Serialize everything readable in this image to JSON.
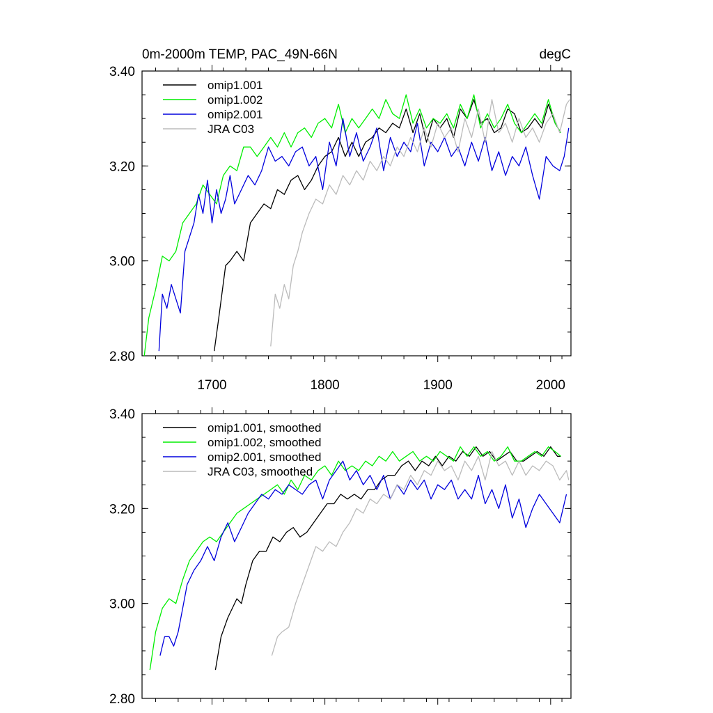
{
  "chart_data": [
    {
      "type": "line",
      "title": "0m-2000m TEMP, PAC_49N-66N",
      "units": "degC",
      "xlabel": "",
      "ylabel": "",
      "xlim": [
        1638,
        2018
      ],
      "ylim": [
        2.8,
        3.4
      ],
      "xticks": [
        1700,
        1800,
        1900,
        2000
      ],
      "xtick_labels": [
        "1700",
        "1800",
        "1900",
        "2000"
      ],
      "yticks": [
        2.8,
        3.0,
        3.2,
        3.4
      ],
      "ytick_labels": [
        "2.80",
        "3.00",
        "3.20",
        "3.40"
      ],
      "legend_position": "top-left",
      "series": [
        {
          "name": "omip1.001",
          "color": "#000000",
          "x": [
            1702,
            1706,
            1712,
            1716,
            1722,
            1728,
            1734,
            1740,
            1746,
            1752,
            1758,
            1764,
            1770,
            1776,
            1782,
            1788,
            1794,
            1800,
            1806,
            1812,
            1818,
            1824,
            1830,
            1836,
            1842,
            1848,
            1854,
            1860,
            1866,
            1872,
            1878,
            1884,
            1890,
            1896,
            1902,
            1908,
            1914,
            1920,
            1926,
            1932,
            1938,
            1944,
            1950,
            1956,
            1962,
            1968,
            1974,
            1980,
            1986,
            1992,
            1998,
            2004,
            2009
          ],
          "y": [
            2.81,
            2.88,
            2.99,
            3.0,
            3.02,
            3.0,
            3.08,
            3.1,
            3.12,
            3.11,
            3.15,
            3.14,
            3.17,
            3.18,
            3.15,
            3.17,
            3.2,
            3.22,
            3.23,
            3.26,
            3.22,
            3.25,
            3.22,
            3.25,
            3.26,
            3.28,
            3.27,
            3.29,
            3.28,
            3.32,
            3.27,
            3.31,
            3.25,
            3.3,
            3.28,
            3.3,
            3.26,
            3.32,
            3.3,
            3.34,
            3.29,
            3.3,
            3.27,
            3.28,
            3.32,
            3.31,
            3.27,
            3.28,
            3.3,
            3.28,
            3.33,
            3.29,
            3.27
          ]
        },
        {
          "name": "omip1.002",
          "color": "#00ee00",
          "x": [
            1640,
            1644,
            1650,
            1656,
            1662,
            1668,
            1674,
            1680,
            1686,
            1692,
            1698,
            1704,
            1710,
            1716,
            1722,
            1728,
            1734,
            1740,
            1746,
            1752,
            1758,
            1764,
            1770,
            1776,
            1782,
            1788,
            1794,
            1800,
            1806,
            1812,
            1818,
            1824,
            1830,
            1836,
            1842,
            1848,
            1854,
            1860,
            1866,
            1872,
            1878,
            1884,
            1890,
            1896,
            1902,
            1908,
            1914,
            1920,
            1926,
            1932,
            1938,
            1944,
            1950,
            1956,
            1962,
            1968,
            1974,
            1980,
            1986,
            1992,
            1998,
            2004,
            2009
          ],
          "y": [
            2.8,
            2.88,
            2.94,
            3.01,
            3.0,
            3.02,
            3.08,
            3.1,
            3.12,
            3.16,
            3.14,
            3.12,
            3.18,
            3.2,
            3.19,
            3.24,
            3.24,
            3.22,
            3.24,
            3.26,
            3.24,
            3.27,
            3.24,
            3.27,
            3.28,
            3.26,
            3.29,
            3.3,
            3.28,
            3.33,
            3.27,
            3.3,
            3.28,
            3.3,
            3.32,
            3.3,
            3.34,
            3.31,
            3.3,
            3.35,
            3.29,
            3.32,
            3.28,
            3.3,
            3.29,
            3.31,
            3.28,
            3.33,
            3.3,
            3.35,
            3.28,
            3.31,
            3.28,
            3.3,
            3.33,
            3.29,
            3.27,
            3.29,
            3.31,
            3.29,
            3.34,
            3.29,
            3.27
          ]
        },
        {
          "name": "omip2.001",
          "color": "#0000dd",
          "x": [
            1653,
            1656,
            1660,
            1664,
            1668,
            1672,
            1676,
            1680,
            1684,
            1688,
            1692,
            1696,
            1700,
            1704,
            1708,
            1712,
            1716,
            1720,
            1726,
            1732,
            1738,
            1744,
            1750,
            1756,
            1762,
            1768,
            1774,
            1780,
            1786,
            1792,
            1798,
            1804,
            1810,
            1816,
            1822,
            1828,
            1834,
            1840,
            1846,
            1852,
            1858,
            1864,
            1870,
            1876,
            1882,
            1888,
            1894,
            1900,
            1906,
            1912,
            1918,
            1924,
            1930,
            1936,
            1942,
            1948,
            1954,
            1960,
            1966,
            1972,
            1978,
            1984,
            1990,
            1996,
            2002,
            2008,
            2012,
            2016
          ],
          "y": [
            2.81,
            2.93,
            2.9,
            2.95,
            2.92,
            2.89,
            3.02,
            3.05,
            3.08,
            3.14,
            3.1,
            3.17,
            3.08,
            3.15,
            3.1,
            3.13,
            3.18,
            3.12,
            3.15,
            3.18,
            3.16,
            3.19,
            3.24,
            3.21,
            3.22,
            3.2,
            3.23,
            3.24,
            3.2,
            3.22,
            3.15,
            3.25,
            3.2,
            3.3,
            3.22,
            3.27,
            3.21,
            3.24,
            3.28,
            3.19,
            3.26,
            3.22,
            3.25,
            3.23,
            3.29,
            3.2,
            3.25,
            3.23,
            3.26,
            3.22,
            3.24,
            3.2,
            3.25,
            3.21,
            3.26,
            3.19,
            3.23,
            3.18,
            3.22,
            3.2,
            3.24,
            3.18,
            3.13,
            3.22,
            3.2,
            3.19,
            3.22,
            3.28
          ]
        },
        {
          "name": "JRA C03",
          "color": "#bbbbbb",
          "x": [
            1752,
            1756,
            1760,
            1764,
            1768,
            1772,
            1776,
            1780,
            1786,
            1792,
            1798,
            1804,
            1810,
            1816,
            1822,
            1828,
            1834,
            1840,
            1846,
            1852,
            1858,
            1864,
            1870,
            1876,
            1882,
            1888,
            1894,
            1900,
            1906,
            1912,
            1918,
            1924,
            1930,
            1936,
            1942,
            1948,
            1954,
            1960,
            1966,
            1972,
            1978,
            1984,
            1990,
            1996,
            2002,
            2008,
            2014,
            2017
          ],
          "y": [
            2.82,
            2.93,
            2.9,
            2.95,
            2.92,
            2.99,
            3.02,
            3.06,
            3.1,
            3.13,
            3.12,
            3.16,
            3.14,
            3.18,
            3.16,
            3.19,
            3.17,
            3.21,
            3.19,
            3.22,
            3.2,
            3.24,
            3.22,
            3.26,
            3.23,
            3.28,
            3.24,
            3.29,
            3.26,
            3.28,
            3.23,
            3.3,
            3.26,
            3.32,
            3.25,
            3.34,
            3.27,
            3.29,
            3.25,
            3.3,
            3.26,
            3.28,
            3.25,
            3.29,
            3.31,
            3.27,
            3.33,
            3.34
          ]
        }
      ]
    },
    {
      "type": "line",
      "title": "",
      "xlabel": "",
      "ylabel": "",
      "xlim": [
        1638,
        2018
      ],
      "ylim": [
        2.8,
        3.4
      ],
      "xticks": [
        1700,
        1800,
        1900,
        2000
      ],
      "yticks": [
        2.8,
        3.0,
        3.2,
        3.4
      ],
      "ytick_labels": [
        "2.80",
        "3.00",
        "3.20",
        "3.40"
      ],
      "legend_position": "top-left",
      "series": [
        {
          "name": "omip1.001, smoothed",
          "color": "#000000",
          "x": [
            1703,
            1708,
            1714,
            1718,
            1722,
            1726,
            1730,
            1736,
            1742,
            1748,
            1754,
            1760,
            1766,
            1772,
            1778,
            1784,
            1790,
            1796,
            1802,
            1808,
            1814,
            1820,
            1826,
            1832,
            1838,
            1844,
            1850,
            1856,
            1862,
            1868,
            1874,
            1880,
            1886,
            1892,
            1898,
            1904,
            1910,
            1916,
            1922,
            1928,
            1934,
            1940,
            1946,
            1952,
            1958,
            1964,
            1970,
            1976,
            1982,
            1988,
            1994,
            2000,
            2006,
            2009
          ],
          "y": [
            2.86,
            2.93,
            2.97,
            2.99,
            3.01,
            3.0,
            3.04,
            3.09,
            3.11,
            3.11,
            3.14,
            3.13,
            3.15,
            3.16,
            3.14,
            3.15,
            3.17,
            3.19,
            3.21,
            3.21,
            3.23,
            3.22,
            3.23,
            3.22,
            3.24,
            3.24,
            3.26,
            3.27,
            3.27,
            3.29,
            3.3,
            3.28,
            3.3,
            3.29,
            3.31,
            3.29,
            3.31,
            3.3,
            3.32,
            3.31,
            3.33,
            3.31,
            3.32,
            3.3,
            3.31,
            3.32,
            3.3,
            3.3,
            3.31,
            3.32,
            3.31,
            3.33,
            3.31,
            3.31
          ]
        },
        {
          "name": "omip1.002, smoothed",
          "color": "#00ee00",
          "x": [
            1645,
            1650,
            1656,
            1662,
            1668,
            1674,
            1680,
            1686,
            1692,
            1698,
            1704,
            1710,
            1716,
            1722,
            1728,
            1734,
            1740,
            1746,
            1752,
            1758,
            1764,
            1770,
            1776,
            1782,
            1788,
            1794,
            1800,
            1806,
            1812,
            1818,
            1824,
            1830,
            1836,
            1842,
            1848,
            1854,
            1860,
            1866,
            1872,
            1878,
            1884,
            1890,
            1896,
            1902,
            1908,
            1914,
            1920,
            1926,
            1932,
            1938,
            1944,
            1950,
            1956,
            1962,
            1968,
            1974,
            1980,
            1986,
            1992,
            1998,
            2004,
            2009
          ],
          "y": [
            2.86,
            2.94,
            2.99,
            3.01,
            3.0,
            3.05,
            3.09,
            3.11,
            3.13,
            3.14,
            3.13,
            3.15,
            3.17,
            3.19,
            3.2,
            3.21,
            3.22,
            3.23,
            3.24,
            3.25,
            3.23,
            3.26,
            3.24,
            3.27,
            3.26,
            3.28,
            3.29,
            3.27,
            3.3,
            3.28,
            3.29,
            3.28,
            3.3,
            3.29,
            3.31,
            3.3,
            3.32,
            3.3,
            3.31,
            3.32,
            3.3,
            3.31,
            3.3,
            3.32,
            3.31,
            3.3,
            3.33,
            3.31,
            3.33,
            3.31,
            3.32,
            3.3,
            3.31,
            3.33,
            3.3,
            3.3,
            3.31,
            3.32,
            3.31,
            3.33,
            3.32,
            3.31
          ]
        },
        {
          "name": "omip2.001, smoothed",
          "color": "#0000dd",
          "x": [
            1654,
            1658,
            1662,
            1666,
            1670,
            1674,
            1678,
            1684,
            1690,
            1696,
            1702,
            1708,
            1714,
            1720,
            1726,
            1732,
            1738,
            1744,
            1750,
            1756,
            1762,
            1768,
            1774,
            1780,
            1786,
            1792,
            1798,
            1804,
            1810,
            1816,
            1822,
            1828,
            1834,
            1840,
            1846,
            1852,
            1858,
            1864,
            1870,
            1876,
            1882,
            1888,
            1894,
            1900,
            1906,
            1912,
            1918,
            1924,
            1930,
            1936,
            1942,
            1948,
            1954,
            1960,
            1966,
            1972,
            1978,
            1984,
            1990,
            1996,
            2002,
            2008,
            2014
          ],
          "y": [
            2.89,
            2.93,
            2.93,
            2.91,
            2.94,
            2.99,
            3.04,
            3.07,
            3.09,
            3.12,
            3.09,
            3.14,
            3.17,
            3.13,
            3.16,
            3.19,
            3.21,
            3.23,
            3.22,
            3.24,
            3.23,
            3.25,
            3.24,
            3.23,
            3.25,
            3.26,
            3.22,
            3.26,
            3.28,
            3.3,
            3.26,
            3.28,
            3.25,
            3.27,
            3.24,
            3.27,
            3.22,
            3.25,
            3.23,
            3.26,
            3.24,
            3.26,
            3.22,
            3.25,
            3.24,
            3.26,
            3.22,
            3.24,
            3.22,
            3.27,
            3.21,
            3.24,
            3.2,
            3.25,
            3.18,
            3.22,
            3.16,
            3.2,
            3.23,
            3.21,
            3.19,
            3.17,
            3.23
          ]
        },
        {
          "name": "JRA C03, smoothed",
          "color": "#bbbbbb",
          "x": [
            1753,
            1758,
            1762,
            1768,
            1774,
            1780,
            1786,
            1792,
            1798,
            1804,
            1810,
            1816,
            1822,
            1828,
            1834,
            1840,
            1846,
            1852,
            1858,
            1864,
            1870,
            1876,
            1882,
            1888,
            1894,
            1900,
            1906,
            1912,
            1918,
            1924,
            1930,
            1936,
            1942,
            1948,
            1954,
            1960,
            1966,
            1972,
            1978,
            1984,
            1990,
            1996,
            2002,
            2008,
            2014,
            2016
          ],
          "y": [
            2.89,
            2.93,
            2.94,
            2.95,
            3.0,
            3.04,
            3.08,
            3.12,
            3.11,
            3.13,
            3.12,
            3.15,
            3.17,
            3.2,
            3.19,
            3.22,
            3.21,
            3.23,
            3.22,
            3.25,
            3.24,
            3.27,
            3.25,
            3.28,
            3.27,
            3.3,
            3.28,
            3.29,
            3.26,
            3.3,
            3.28,
            3.31,
            3.26,
            3.32,
            3.29,
            3.3,
            3.27,
            3.3,
            3.27,
            3.29,
            3.28,
            3.3,
            3.29,
            3.26,
            3.28,
            3.26
          ]
        }
      ]
    }
  ]
}
